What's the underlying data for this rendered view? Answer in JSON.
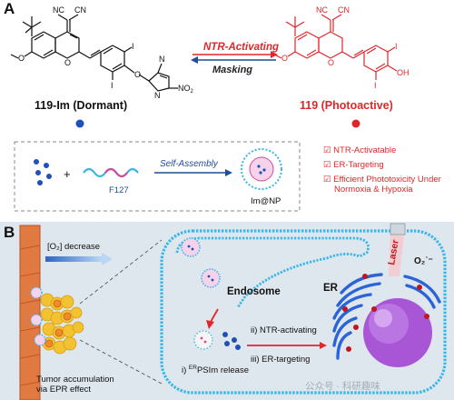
{
  "panel_a": {
    "letter": "A",
    "dormant_label": "119-Im (Dormant)",
    "active_label": "119 (Photoactive)",
    "activating_label": "NTR-Activating",
    "masking_label": "Masking",
    "features": [
      "NTR-Activatable",
      "ER-Targeting",
      "Efficient Phototoxicity Under",
      "Normoxia & Hypoxia"
    ],
    "checkbox_glyph": "☑",
    "assembly_label": "Self-Assembly",
    "polymer_label": "F127",
    "nanoparticle_label": "Im@NP",
    "atoms": {
      "nc": "NC",
      "cn": "CN",
      "o": "O",
      "i": "I",
      "n": "N",
      "n_no2": "N",
      "no2": "NO",
      "no2_sub": "2",
      "methyl_n": "N",
      "oh": "OH"
    }
  },
  "panel_b": {
    "letter": "B",
    "o2_label": "[O₂] decrease",
    "tumor_label_1": "Tumor accumulation",
    "tumor_label_2": "via EPR effect",
    "endosome_label": "Endosome",
    "er_label": "ER",
    "laser_label": "Laser",
    "superoxide_label": "O₂˙⁻",
    "step_i_prefix": "i)",
    "step_i_sup": "ER",
    "step_i_text": "PSIm release",
    "step_ii": "ii) NTR-activating",
    "step_iii": "iii) ER-targeting"
  },
  "watermark": "公众号 · 科研趣味",
  "colors": {
    "red": "#e0262b",
    "blue": "#1f4e96",
    "dot_blue": "#1e50b8",
    "membrane": "#37b6e8",
    "er_blue": "#2a64d6",
    "nucleus": "#a855d6",
    "vessel": "#e07a42"
  }
}
